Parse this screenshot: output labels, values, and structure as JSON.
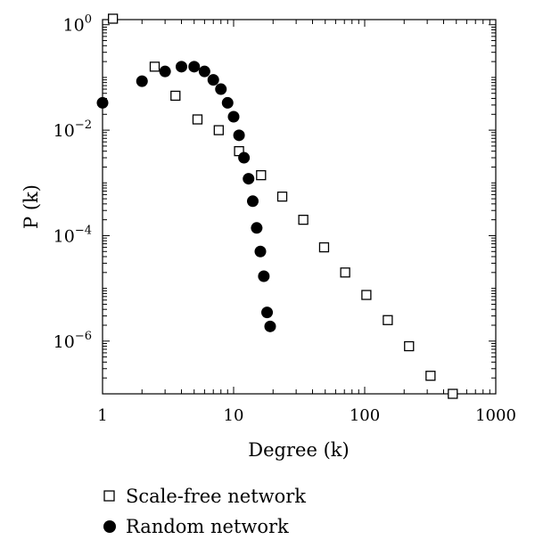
{
  "chart_data": {
    "type": "scatter",
    "xlabel": "Degree (k)",
    "ylabel": "P (k)",
    "x_scale": "log",
    "y_scale": "log",
    "xlim": [
      1,
      1000
    ],
    "ylim": [
      1e-07,
      1.25
    ],
    "grid": false,
    "legend_position": "bottom-left",
    "x_ticks": [
      {
        "value": 1,
        "label": "1"
      },
      {
        "value": 10,
        "label": "10"
      },
      {
        "value": 100,
        "label": "100"
      },
      {
        "value": 1000,
        "label": "1000"
      }
    ],
    "y_ticks": [
      {
        "value": 1,
        "base": "10",
        "exp": "0"
      },
      {
        "value": 0.01,
        "base": "10",
        "exp": "−2"
      },
      {
        "value": 0.0001,
        "base": "10",
        "exp": "−4"
      },
      {
        "value": 1e-06,
        "base": "10",
        "exp": "−6"
      }
    ],
    "series": [
      {
        "name": "Scale-free network",
        "marker": "open-square",
        "color": "#000000",
        "points": [
          [
            1.2,
            1.3
          ],
          [
            2.5,
            0.16
          ],
          [
            3.6,
            0.045
          ],
          [
            5.3,
            0.016
          ],
          [
            7.7,
            0.01
          ],
          [
            11.0,
            0.004
          ],
          [
            16.2,
            0.0014
          ],
          [
            23.5,
            0.00055
          ],
          [
            34.0,
            0.0002
          ],
          [
            49.0,
            6e-05
          ],
          [
            71.0,
            2e-05
          ],
          [
            103.0,
            7.5e-06
          ],
          [
            150.0,
            2.5e-06
          ],
          [
            218.0,
            8e-07
          ],
          [
            318.0,
            2.2e-07
          ],
          [
            470.0,
            1e-07
          ]
        ]
      },
      {
        "name": "Random network",
        "marker": "filled-circle",
        "color": "#000000",
        "points": [
          [
            1.0,
            0.033
          ],
          [
            2.0,
            0.085
          ],
          [
            3.0,
            0.13
          ],
          [
            4.0,
            0.16
          ],
          [
            5.0,
            0.16
          ],
          [
            6.0,
            0.13
          ],
          [
            7.0,
            0.09
          ],
          [
            8.0,
            0.06
          ],
          [
            9.0,
            0.033
          ],
          [
            10.0,
            0.018
          ],
          [
            11.0,
            0.008
          ],
          [
            12.0,
            0.003
          ],
          [
            13.0,
            0.0012
          ],
          [
            14.0,
            0.00045
          ],
          [
            15.0,
            0.00014
          ],
          [
            16.0,
            5e-05
          ],
          [
            17.0,
            1.7e-05
          ],
          [
            18.0,
            3.5e-06
          ],
          [
            19.0,
            1.9e-06
          ]
        ]
      }
    ]
  }
}
